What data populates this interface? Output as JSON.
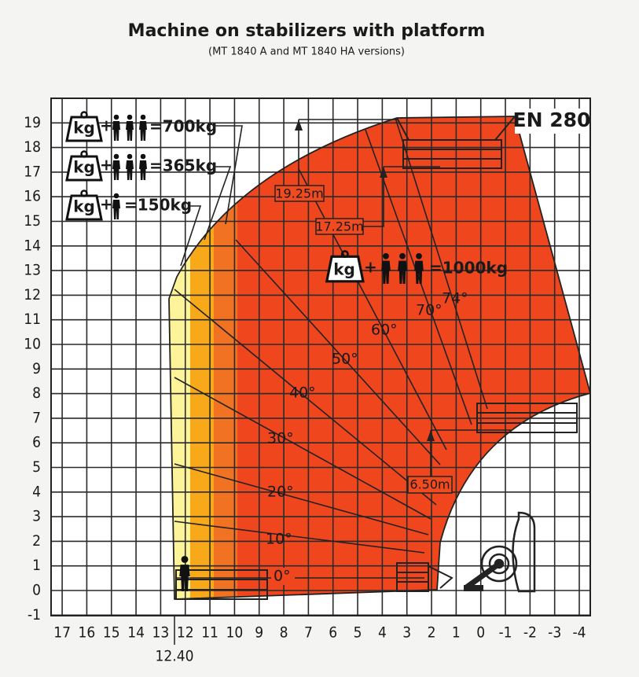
{
  "header": {
    "title": "Machine on stabilizers with platform",
    "subtitle": "(MT 1840 A and MT 1840 HA versions)"
  },
  "badge": "EN 280",
  "axes": {
    "x_ticks": [
      17,
      16,
      15,
      14,
      13,
      12,
      11,
      10,
      9,
      8,
      7,
      6,
      5,
      4,
      3,
      2,
      1,
      0,
      -1,
      -2,
      -3,
      -4
    ],
    "y_ticks": [
      19,
      18,
      17,
      16,
      15,
      14,
      13,
      12,
      11,
      10,
      9,
      8,
      7,
      6,
      5,
      4,
      3,
      2,
      1,
      0,
      -1
    ],
    "reach_label": "12.40"
  },
  "loads": [
    {
      "icon": "kg",
      "plus": "+",
      "total": "=700kg"
    },
    {
      "icon": "kg",
      "plus": "+",
      "total": "=365kg"
    },
    {
      "icon": "kg",
      "plus": "+",
      "total": "=150kg"
    },
    {
      "icon": "kg",
      "plus": "+",
      "total": "=1000kg"
    }
  ],
  "heights": [
    "19.25m",
    "17.25m",
    "6.50m"
  ],
  "angles": [
    "0°",
    "10°",
    "20°",
    "30°",
    "40°",
    "50°",
    "60°",
    "70°",
    "74°"
  ]
}
